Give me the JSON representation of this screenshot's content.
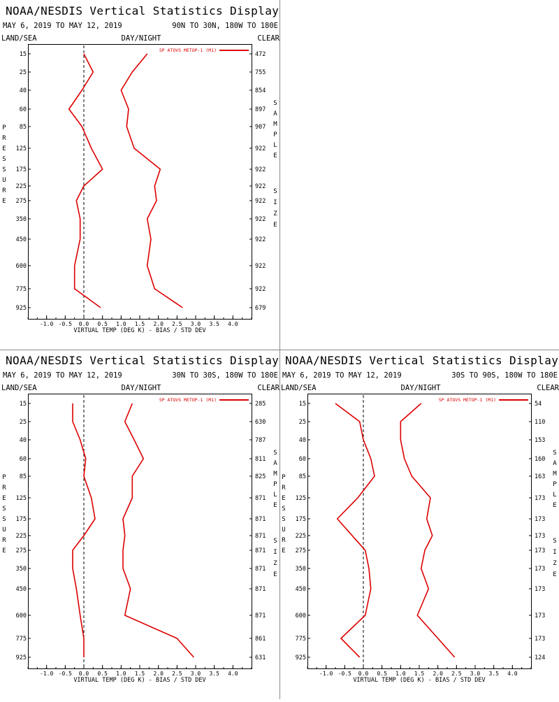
{
  "panels_labels": {
    "header_title": "NOAA/NESDIS Vertical Statistics Display",
    "date_range": "MAY 6, 2019 TO MAY 12, 2019",
    "left_label": "LAND/SEA",
    "center_label": "DAY/NIGHT",
    "right_label": "CLEAR",
    "left_axis_letters": [
      "P",
      "R",
      "E",
      "S",
      "S",
      "U",
      "R",
      "E"
    ],
    "right_axis_letters_top": [
      "S",
      "A",
      "M",
      "P",
      "L",
      "E"
    ],
    "right_axis_letters_bottom": [
      "S",
      "I",
      "Z",
      "E"
    ],
    "xlabel": "VIRTUAL TEMP (DEG K) - BIAS / STD DEV",
    "x_ticks": [
      "-1.0",
      "-0.5",
      "0.0",
      "0.5",
      "1.0",
      "1.5",
      "2.0",
      "2.5",
      "3.0",
      "3.5",
      "4.0"
    ],
    "legend_label": "SP ATOVS METOP-1 (M1)",
    "line_color": "#dd0000"
  },
  "chart_data": [
    {
      "type": "line",
      "region": "90N TO 30N, 180W TO 180E",
      "pressure_levels": [
        15,
        25,
        40,
        60,
        85,
        125,
        175,
        225,
        275,
        350,
        450,
        600,
        775,
        925
      ],
      "sample_size": [
        472,
        755,
        854,
        897,
        907,
        922,
        922,
        922,
        922,
        922,
        922,
        922,
        922,
        679
      ],
      "series": [
        {
          "values": [
            0.0,
            0.25,
            -0.05,
            -0.4,
            -0.05,
            0.2,
            0.5,
            0.0,
            -0.2,
            -0.1,
            -0.1,
            -0.25,
            -0.25,
            0.45
          ]
        },
        {
          "values": [
            1.7,
            1.3,
            1.0,
            1.2,
            1.15,
            1.35,
            2.05,
            1.9,
            1.95,
            1.7,
            1.8,
            1.7,
            1.9,
            2.65
          ]
        }
      ],
      "xlim": [
        -1.5,
        4.5
      ]
    },
    {
      "type": "line",
      "region": "30N TO 30S, 180W TO 180E",
      "pressure_levels": [
        15,
        25,
        40,
        60,
        85,
        125,
        175,
        225,
        275,
        350,
        450,
        600,
        775,
        925
      ],
      "sample_size": [
        285,
        630,
        787,
        811,
        825,
        871,
        871,
        871,
        871,
        871,
        871,
        871,
        861,
        631
      ],
      "series": [
        {
          "values": [
            -0.3,
            -0.3,
            -0.1,
            0.05,
            0.0,
            0.2,
            0.3,
            0.0,
            -0.3,
            -0.3,
            -0.2,
            -0.1,
            0.0,
            0.0
          ]
        },
        {
          "values": [
            1.3,
            1.1,
            1.35,
            1.6,
            1.3,
            1.3,
            1.05,
            1.1,
            1.05,
            1.05,
            1.25,
            1.1,
            2.5,
            2.95
          ]
        }
      ],
      "xlim": [
        -1.5,
        4.5
      ]
    },
    {
      "type": "line",
      "region": "30S TO 90S, 180W TO 180E",
      "pressure_levels": [
        15,
        25,
        40,
        60,
        85,
        125,
        175,
        225,
        275,
        350,
        450,
        600,
        775,
        925
      ],
      "sample_size": [
        54,
        110,
        153,
        160,
        163,
        173,
        173,
        173,
        173,
        173,
        173,
        173,
        173,
        124
      ],
      "series": [
        {
          "values": [
            -0.75,
            -0.1,
            0.0,
            0.2,
            0.3,
            -0.15,
            -0.7,
            -0.3,
            0.05,
            0.15,
            0.2,
            0.05,
            -0.6,
            -0.1
          ]
        },
        {
          "values": [
            1.55,
            1.0,
            1.0,
            1.1,
            1.3,
            1.8,
            1.7,
            1.85,
            1.65,
            1.55,
            1.75,
            1.45,
            2.0,
            2.45
          ]
        }
      ],
      "xlim": [
        -1.5,
        4.5
      ]
    }
  ]
}
